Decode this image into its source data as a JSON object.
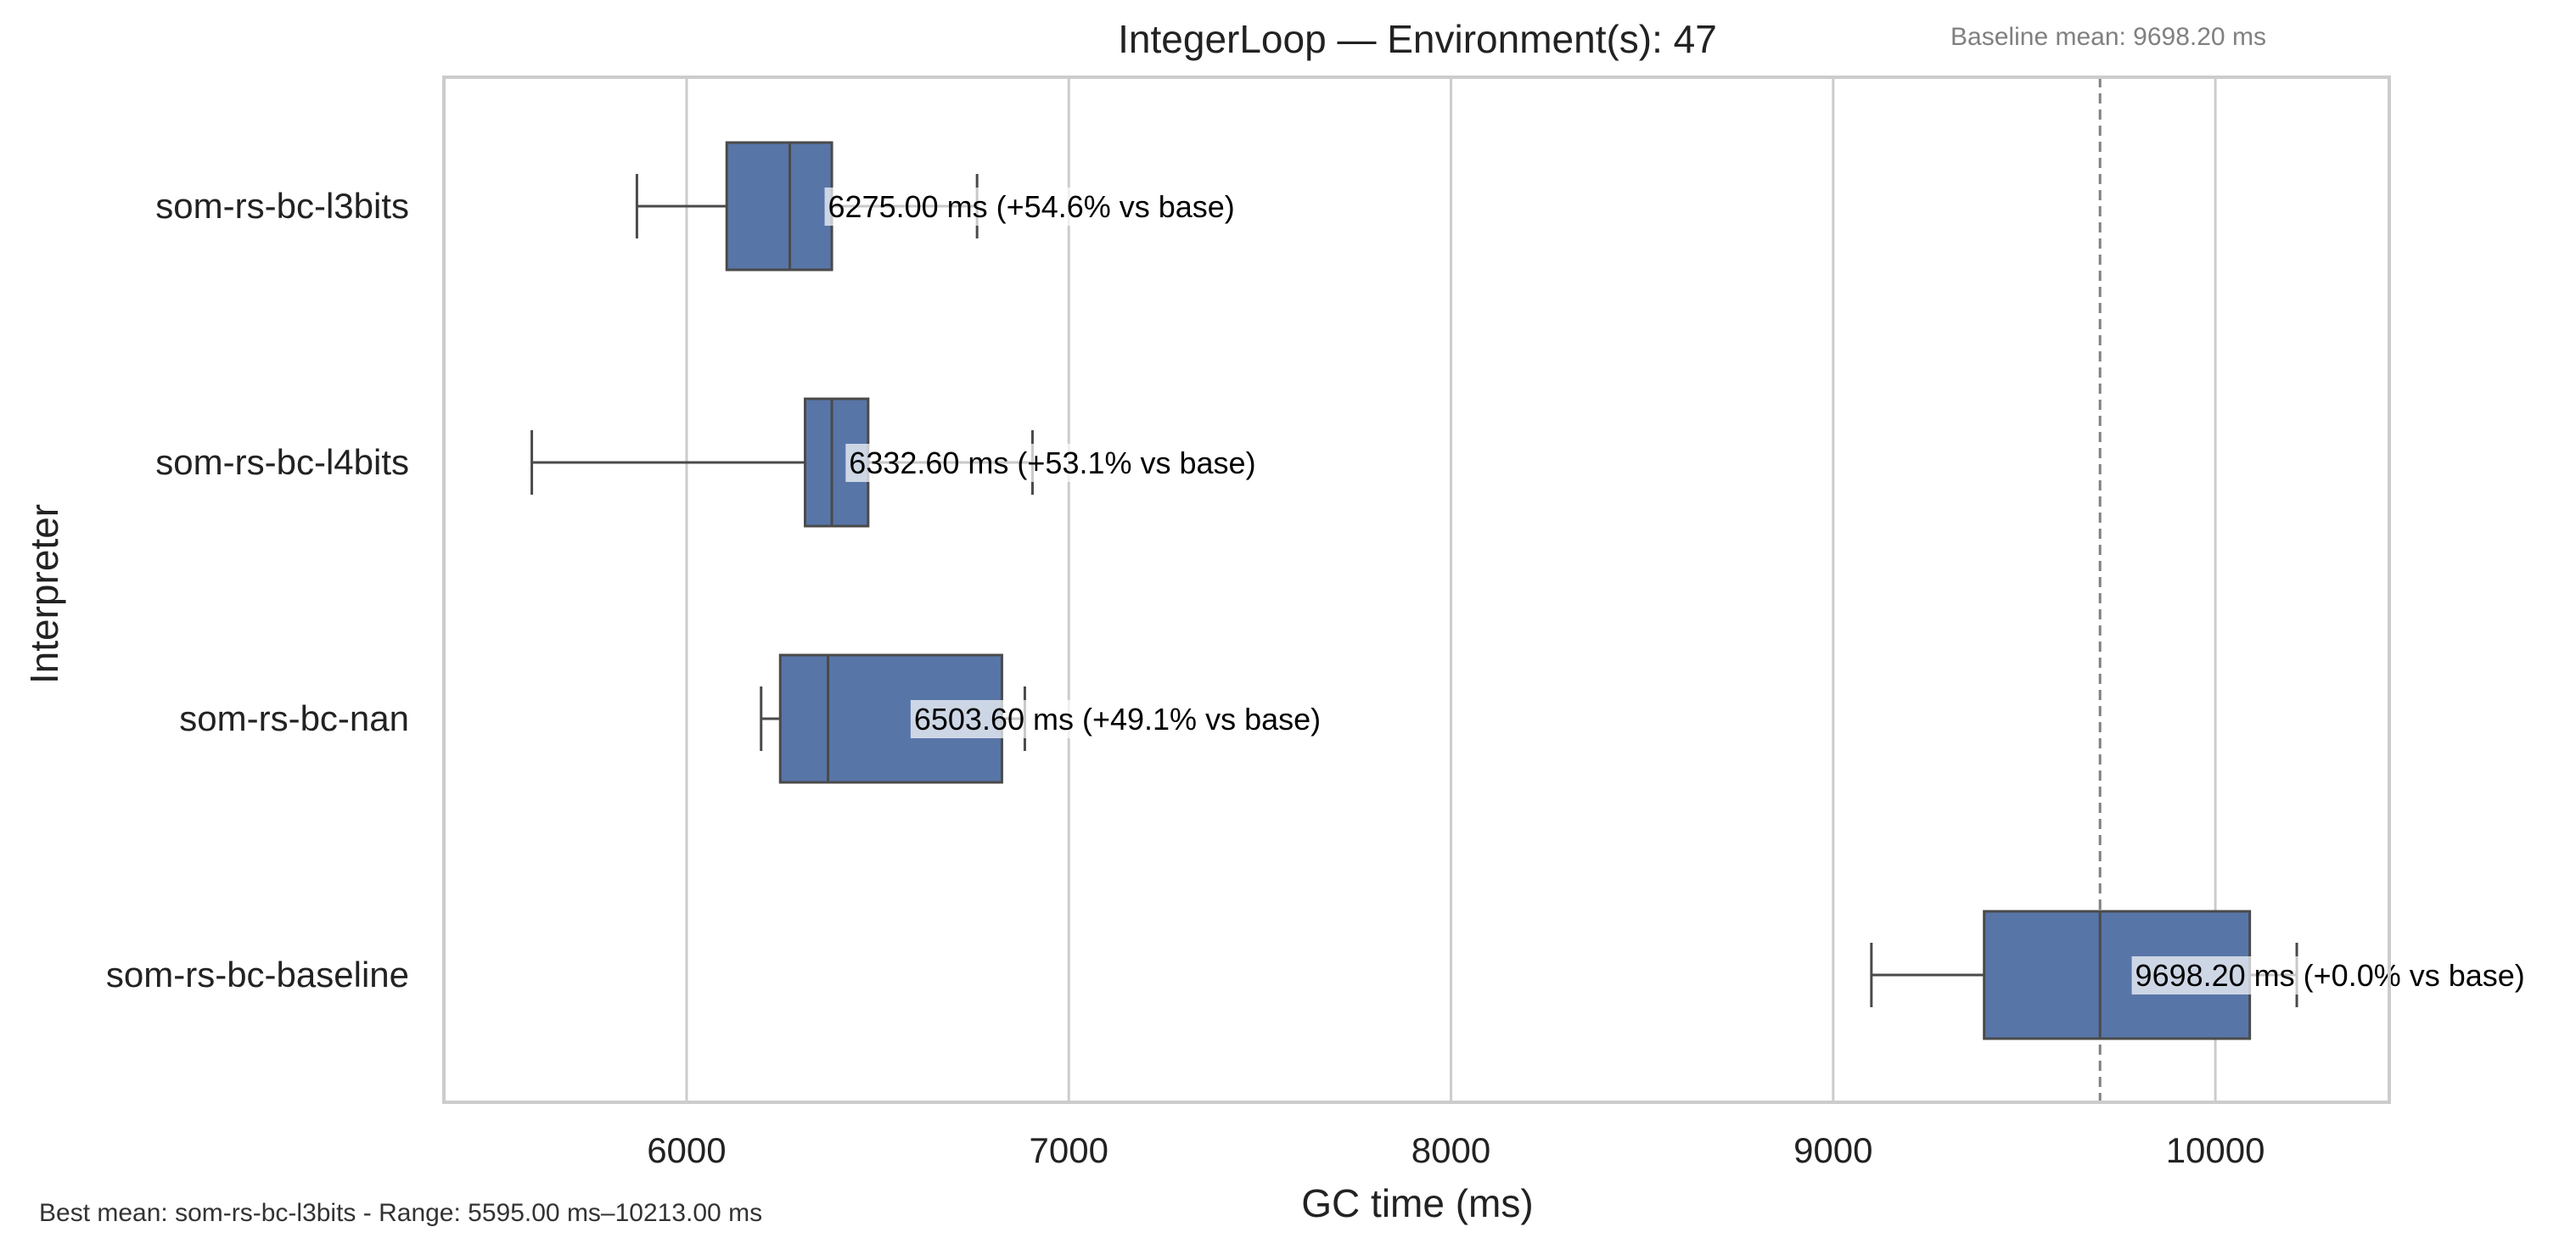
{
  "chart_data": {
    "type": "box",
    "orientation": "horizontal",
    "title": "IntegerLoop — Environment(s): 47",
    "annotation_top_right": "Baseline mean: 9698.20 ms",
    "footer_note": "Best mean: som-rs-bc-l3bits - Range: 5595.00 ms–10213.00 ms",
    "xlabel": "GC time (ms)",
    "ylabel": "Interpreter",
    "xlim": [
      5365,
      10455
    ],
    "xticks": [
      6000,
      7000,
      8000,
      9000,
      10000
    ],
    "xtick_labels": [
      "6000",
      "7000",
      "8000",
      "9000",
      "10000"
    ],
    "grid": "x-major",
    "reference_line": {
      "value": 9698.2,
      "style": "dashed",
      "color": "#808080"
    },
    "box_color": "#5875a8",
    "line_color": "#4a4a4a",
    "categories": [
      "som-rs-bc-l3bits",
      "som-rs-bc-l4bits",
      "som-rs-bc-nan",
      "som-rs-bc-baseline"
    ],
    "boxes": [
      {
        "name": "som-rs-bc-l3bits",
        "whisker_low": 5870,
        "q1": 6105,
        "median": 6270,
        "q3": 6380,
        "whisker_high": 6760,
        "mean_label": "6275.00 ms  (+54.6% vs base)",
        "label_x": 6370
      },
      {
        "name": "som-rs-bc-l4bits",
        "whisker_low": 5595,
        "q1": 6310,
        "median": 6380,
        "q3": 6475,
        "whisker_high": 6905,
        "mean_label": "6332.60 ms  (+53.1% vs base)",
        "label_x": 6425
      },
      {
        "name": "som-rs-bc-nan",
        "whisker_low": 6195,
        "q1": 6245,
        "median": 6370,
        "q3": 6825,
        "whisker_high": 6885,
        "mean_label": "6503.60 ms  (+49.1% vs base)",
        "label_x": 6595
      },
      {
        "name": "som-rs-bc-baseline",
        "whisker_low": 9100,
        "q1": 9395,
        "median": 9698.2,
        "q3": 10090,
        "whisker_high": 10213,
        "mean_label": "9698.20 ms  (+0.0% vs base)",
        "label_x": 9790
      }
    ]
  }
}
